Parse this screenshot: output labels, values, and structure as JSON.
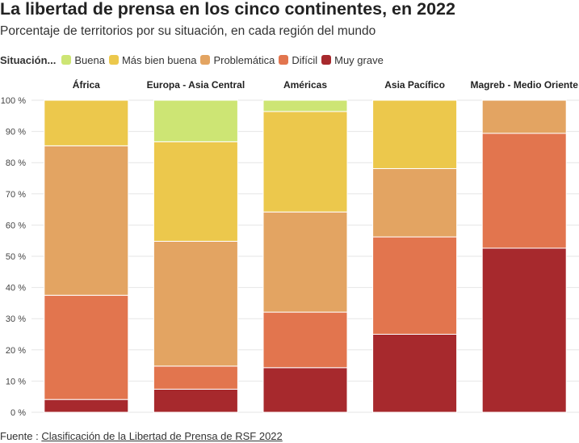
{
  "title": "La libertad de prensa en los cinco continentes, en 2022",
  "subtitle": "Porcentaje de territorios por su situación, en cada región del mundo",
  "legend": {
    "title": "Situación...",
    "items": [
      {
        "label": "Buena",
        "color": "#cde574"
      },
      {
        "label": "Más bien buena",
        "color": "#ecc84c"
      },
      {
        "label": "Problemática",
        "color": "#e3a462"
      },
      {
        "label": "Difícil",
        "color": "#e2754e"
      },
      {
        "label": "Muy grave",
        "color": "#a7292d"
      }
    ]
  },
  "source": {
    "prefix": "Fuente : ",
    "link_text": "Clasificación de la Libertad de Prensa de RSF 2022"
  },
  "chart_data": {
    "type": "bar",
    "stacked": true,
    "categories": [
      "África",
      "Europa - Asia Central",
      "Américas",
      "Asia Pacífico",
      "Magreb - Medio Oriente"
    ],
    "series": [
      {
        "name": "Muy grave",
        "color": "#a7292d",
        "values": [
          4.1,
          7.4,
          14.3,
          25.0,
          52.6
        ]
      },
      {
        "name": "Difícil",
        "color": "#e2754e",
        "values": [
          33.4,
          7.4,
          17.8,
          31.2,
          36.8
        ]
      },
      {
        "name": "Problemática",
        "color": "#e3a462",
        "values": [
          47.9,
          40.0,
          32.1,
          21.9,
          10.6
        ]
      },
      {
        "name": "Más bien buena",
        "color": "#ecc84c",
        "values": [
          14.6,
          31.9,
          32.2,
          21.9,
          0
        ]
      },
      {
        "name": "Buena",
        "color": "#cde574",
        "values": [
          0,
          13.3,
          3.6,
          0,
          0
        ]
      }
    ],
    "ylim": [
      0,
      100
    ],
    "yticks": [
      "0 %",
      "10 %",
      "20 %",
      "30 %",
      "40 %",
      "50 %",
      "60 %",
      "70 %",
      "80 %",
      "90 %",
      "100 %"
    ],
    "grid": true
  }
}
